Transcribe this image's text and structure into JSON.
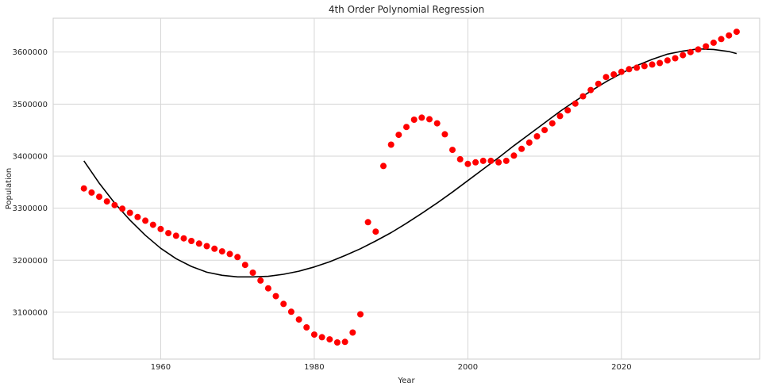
{
  "chart_data": {
    "type": "scatter",
    "title": "4th Order Polynomial Regression",
    "xlabel": "Year",
    "ylabel": "Population",
    "xlim": [
      1946,
      2038
    ],
    "ylim": [
      3010000,
      3665000
    ],
    "xticks": [
      1960,
      1980,
      2000,
      2020
    ],
    "yticks": [
      3100000,
      3200000,
      3300000,
      3400000,
      3500000,
      3600000
    ],
    "xtick_labels": [
      "1960",
      "1980",
      "2000",
      "2020"
    ],
    "ytick_labels": [
      "3100000",
      "3200000",
      "3300000",
      "3400000",
      "3500000",
      "3600000"
    ],
    "grid": true,
    "series": [
      {
        "kind": "scatter",
        "color": "#ff0000",
        "x": [
          1950,
          1951,
          1952,
          1953,
          1954,
          1955,
          1956,
          1957,
          1958,
          1959,
          1960,
          1961,
          1962,
          1963,
          1964,
          1965,
          1966,
          1967,
          1968,
          1969,
          1970,
          1971,
          1972,
          1973,
          1974,
          1975,
          1976,
          1977,
          1978,
          1979,
          1980,
          1981,
          1982,
          1983,
          1984,
          1985,
          1986,
          1987,
          1988,
          1989,
          1990,
          1991,
          1992,
          1993,
          1994,
          1995,
          1996,
          1997,
          1998,
          1999,
          2000,
          2001,
          2002,
          2003,
          2004,
          2005,
          2006,
          2007,
          2008,
          2009,
          2010,
          2011,
          2012,
          2013,
          2014,
          2015,
          2016,
          2017,
          2018,
          2019,
          2020,
          2021,
          2022,
          2023,
          2024,
          2025,
          2026,
          2027,
          2028,
          2029,
          2030,
          2031,
          2032,
          2033,
          2034,
          2035
        ],
        "y": [
          3338000,
          3330000,
          3322000,
          3313000,
          3306000,
          3299000,
          3291000,
          3283000,
          3276000,
          3268000,
          3260000,
          3252000,
          3247000,
          3242000,
          3237000,
          3232000,
          3227000,
          3222000,
          3217000,
          3212000,
          3206000,
          3191000,
          3176000,
          3161000,
          3146000,
          3131000,
          3116000,
          3101000,
          3086000,
          3071000,
          3057000,
          3052000,
          3048000,
          3042000,
          3043000,
          3061000,
          3096000,
          3273000,
          3255000,
          3381000,
          3422000,
          3441000,
          3456000,
          3470000,
          3474000,
          3471000,
          3463000,
          3442000,
          3412000,
          3394000,
          3385000,
          3388000,
          3391000,
          3391000,
          3388000,
          3391000,
          3401000,
          3414000,
          3426000,
          3438000,
          3450000,
          3463000,
          3477000,
          3488000,
          3501000,
          3515000,
          3527000,
          3539000,
          3552000,
          3557000,
          3562000,
          3567000,
          3570000,
          3573000,
          3576000,
          3579000,
          3584000,
          3588000,
          3594000,
          3600000,
          3605000,
          3611000,
          3618000,
          3625000,
          3632000,
          3639000
        ]
      },
      {
        "kind": "line",
        "color": "#000000",
        "x": [
          1950,
          1952,
          1954,
          1956,
          1958,
          1960,
          1962,
          1964,
          1966,
          1968,
          1970,
          1972,
          1974,
          1976,
          1978,
          1980,
          1982,
          1984,
          1986,
          1988,
          1990,
          1992,
          1994,
          1996,
          1998,
          2000,
          2002,
          2004,
          2006,
          2008,
          2010,
          2012,
          2014,
          2016,
          2018,
          2020,
          2022,
          2024,
          2026,
          2028,
          2030,
          2032,
          2034,
          2035
        ],
        "y": [
          3391000,
          3348000,
          3310000,
          3277000,
          3248000,
          3223000,
          3203000,
          3188000,
          3177000,
          3171000,
          3168000,
          3168000,
          3169000,
          3173000,
          3179000,
          3187000,
          3197000,
          3209000,
          3222000,
          3237000,
          3253000,
          3271000,
          3290000,
          3310000,
          3331000,
          3353000,
          3375000,
          3397000,
          3420000,
          3442000,
          3464000,
          3486000,
          3506000,
          3525000,
          3543000,
          3559000,
          3574000,
          3586000,
          3596000,
          3602000,
          3606000,
          3605000,
          3601000,
          3597000
        ]
      }
    ]
  }
}
